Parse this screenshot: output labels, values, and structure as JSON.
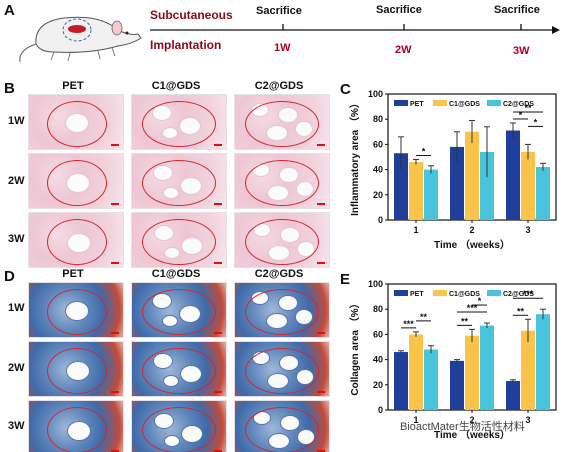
{
  "panel_a": {
    "label": "A",
    "title_line1": "Subcutaneous",
    "title_line2": "Implantation",
    "events": [
      "Sacrifice",
      "Sacrifice",
      "Sacrifice"
    ],
    "weeks": [
      "1W",
      "2W",
      "3W"
    ]
  },
  "panel_b": {
    "label": "B",
    "columns": [
      "PET",
      "C1@GDS",
      "C2@GDS"
    ],
    "rows": [
      "1W",
      "2W",
      "3W"
    ]
  },
  "panel_d": {
    "label": "D",
    "columns": [
      "PET",
      "C1@GDS",
      "C2@GDS"
    ],
    "rows": [
      "1W",
      "2W",
      "3W"
    ]
  },
  "chart_data": [
    {
      "panel_label": "C",
      "type": "bar",
      "categories": [
        "1",
        "2",
        "3"
      ],
      "series": [
        {
          "name": "PET",
          "color": "#1f3f9a",
          "values": [
            53,
            58,
            71
          ],
          "errors": [
            13,
            12,
            6
          ]
        },
        {
          "name": "C1@GDS",
          "color": "#fbc34a",
          "values": [
            46,
            70,
            54
          ],
          "errors": [
            2,
            9,
            6
          ]
        },
        {
          "name": "C2@GDS",
          "color": "#48c4dc",
          "values": [
            40,
            54,
            42
          ],
          "errors": [
            3,
            20,
            3
          ]
        }
      ],
      "ylabel": "Inflammatory area （%）",
      "xlabel": "Time （weeks）",
      "ylim": [
        0,
        100
      ],
      "yticks": [
        "0",
        "20",
        "40",
        "60",
        "80",
        "100"
      ],
      "legend_position": "top",
      "significance": [
        {
          "week": 0,
          "from": 1,
          "to": 2,
          "text": "*"
        },
        {
          "week": 2,
          "from": 0,
          "to": 1,
          "text": "*"
        },
        {
          "week": 2,
          "from": 0,
          "to": 2,
          "text": "**"
        },
        {
          "week": 2,
          "from": 1,
          "to": 2,
          "text": "*"
        }
      ]
    },
    {
      "panel_label": "E",
      "type": "bar",
      "categories": [
        "1",
        "2",
        "3"
      ],
      "series": [
        {
          "name": "PET",
          "color": "#1f3f9a",
          "values": [
            46,
            39,
            23
          ],
          "errors": [
            1,
            1,
            1
          ]
        },
        {
          "name": "C1@GDS",
          "color": "#fbc34a",
          "values": [
            60,
            59,
            63
          ],
          "errors": [
            2,
            5,
            9
          ]
        },
        {
          "name": "C2@GDS",
          "color": "#48c4dc",
          "values": [
            48,
            67,
            76
          ],
          "errors": [
            3,
            2,
            4
          ]
        }
      ],
      "ylabel": "Collagen area （%）",
      "xlabel": "Time （weeks）",
      "ylim": [
        0,
        100
      ],
      "yticks": [
        "0",
        "20",
        "40",
        "60",
        "80",
        "100"
      ],
      "legend_position": "top",
      "significance": [
        {
          "week": 0,
          "from": 0,
          "to": 1,
          "text": "***"
        },
        {
          "week": 0,
          "from": 1,
          "to": 2,
          "text": "**"
        },
        {
          "week": 1,
          "from": 0,
          "to": 1,
          "text": "**"
        },
        {
          "week": 1,
          "from": 0,
          "to": 2,
          "text": "***"
        },
        {
          "week": 1,
          "from": 1,
          "to": 2,
          "text": "*"
        },
        {
          "week": 2,
          "from": 0,
          "to": 1,
          "text": "**"
        },
        {
          "week": 2,
          "from": 0,
          "to": 2,
          "text": "***"
        }
      ]
    }
  ],
  "watermark": "BioactMater生物活性材料"
}
